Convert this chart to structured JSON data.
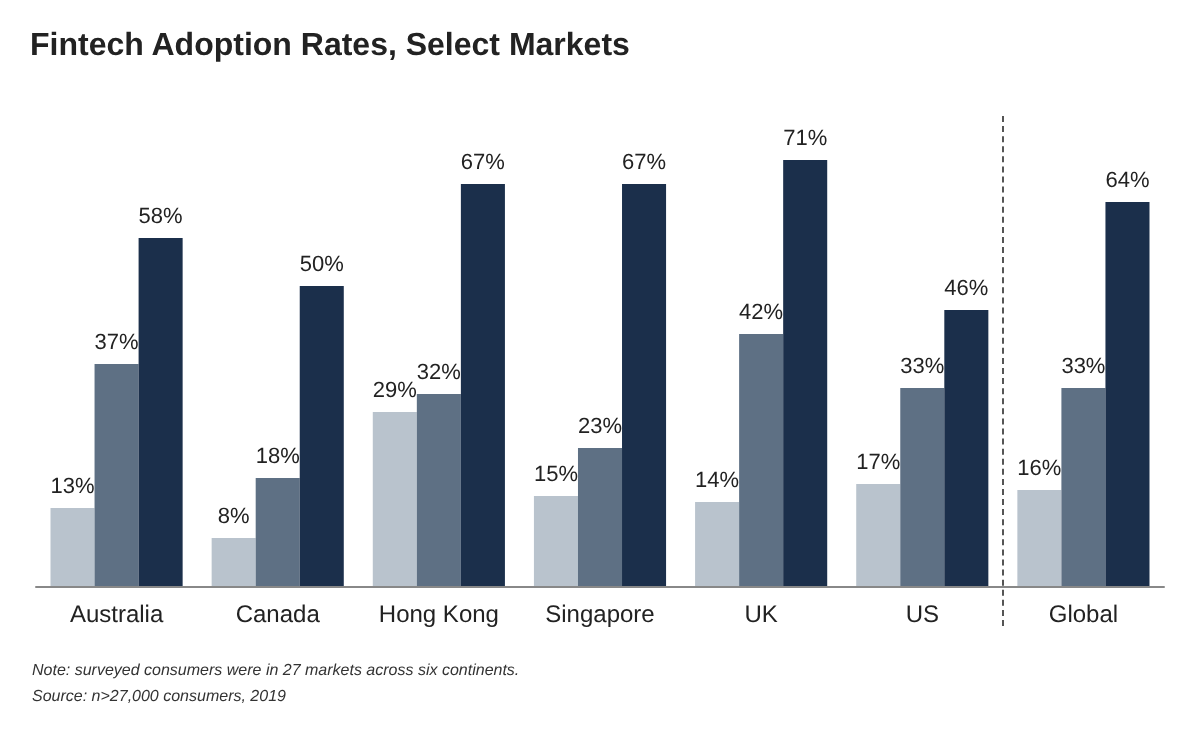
{
  "chart_data": {
    "type": "bar",
    "title": "Fintech Adoption Rates, Select Markets",
    "categories": [
      "Australia",
      "Canada",
      "Hong Kong",
      "Singapore",
      "UK",
      "US",
      "Global"
    ],
    "series": [
      {
        "color": "#b9c3cd",
        "values": [
          13,
          8,
          29,
          15,
          14,
          17,
          16
        ],
        "value_labels": [
          "13%",
          "8%",
          "29%",
          "15%",
          "14%",
          "17%",
          "16%"
        ]
      },
      {
        "color": "#5e7084",
        "values": [
          37,
          18,
          32,
          23,
          42,
          33,
          33
        ],
        "value_labels": [
          "37%",
          "18%",
          "32%",
          "23%",
          "42%",
          "33%",
          "33%"
        ]
      },
      {
        "color": "#1b2f4b",
        "values": [
          58,
          50,
          67,
          67,
          71,
          46,
          64
        ],
        "value_labels": [
          "58%",
          "50%",
          "67%",
          "67%",
          "71%",
          "46%",
          "64%"
        ]
      }
    ],
    "tick_labels": "x",
    "annotations": [
      "Note: surveyed consumers were in 27 markets across six continents.",
      "Source: n>27,000 consumers, 2019"
    ]
  }
}
